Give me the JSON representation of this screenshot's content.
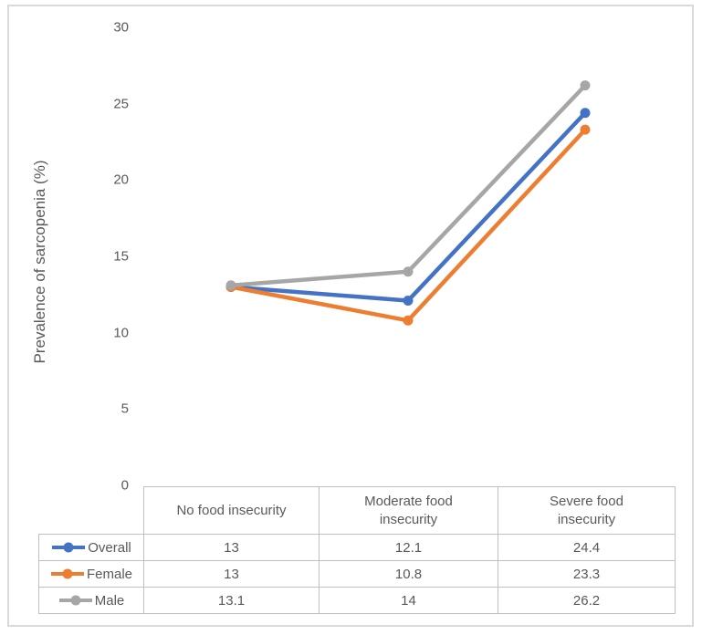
{
  "chart_data": {
    "type": "line",
    "ylabel": "Prevalence of sarcopenia (%)",
    "xlabel": "",
    "categories": [
      "No food insecurity",
      "Moderate food insecurity",
      "Severe food insecurity"
    ],
    "series": [
      {
        "name": "Overall",
        "values": [
          13,
          12.1,
          24.4
        ],
        "color": "#4472C4"
      },
      {
        "name": "Female",
        "values": [
          13,
          10.8,
          23.3
        ],
        "color": "#ED7D31"
      },
      {
        "name": "Male",
        "values": [
          13.1,
          14,
          26.2
        ],
        "color": "#A6A6A6"
      }
    ],
    "ylim": [
      0,
      30
    ],
    "yticks": [
      0,
      5,
      10,
      15,
      20,
      25,
      30
    ],
    "grid": false,
    "legend_position": "data-table-left",
    "data_table_shown": true
  }
}
